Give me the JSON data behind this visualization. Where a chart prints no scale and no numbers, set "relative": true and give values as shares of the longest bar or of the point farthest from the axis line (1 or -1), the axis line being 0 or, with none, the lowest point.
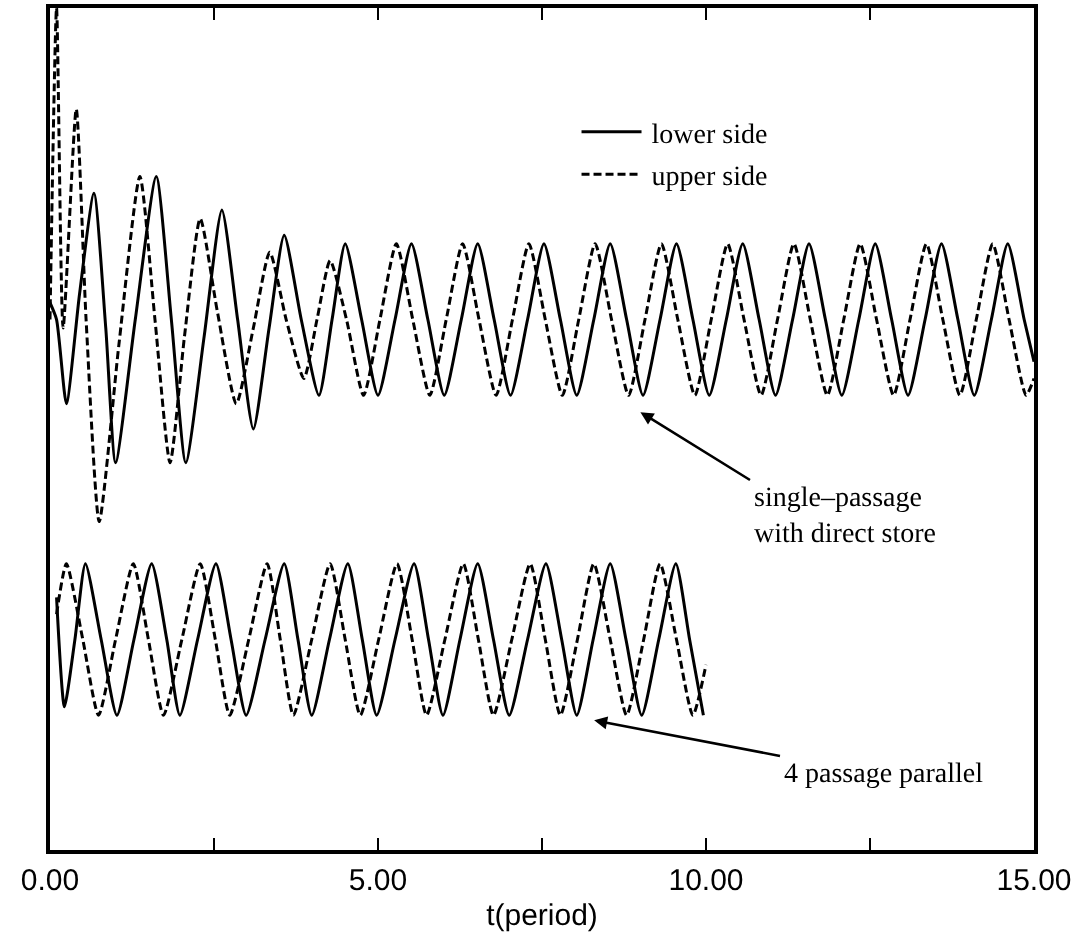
{
  "chart_data": {
    "type": "line",
    "relative": true,
    "xlabel": "t(period)",
    "xlim": [
      0,
      15
    ],
    "xticks": [
      {
        "value": 0,
        "label": "0.00"
      },
      {
        "value": 2.5,
        "label": null
      },
      {
        "value": 5,
        "label": "5.00"
      },
      {
        "value": 7.5,
        "label": null
      },
      {
        "value": 10,
        "label": "10.00"
      },
      {
        "value": 12.5,
        "label": null
      },
      {
        "value": 15,
        "label": "15.00"
      }
    ],
    "tick_labels": "x",
    "grid": false,
    "legend": "top right",
    "marker": "none",
    "series": [
      {
        "name": "lower side",
        "color": "#000000",
        "line_style": "solid",
        "x": [
          0,
          0.1,
          0.25,
          0.45,
          0.67,
          0.85,
          1.0,
          1.3,
          1.62,
          1.85,
          2.07,
          2.35,
          2.62,
          2.86,
          3.1,
          3.34,
          3.57,
          3.83,
          4.1,
          4.3,
          4.5,
          4.75,
          5.0,
          5.26,
          5.51,
          5.76,
          6.01,
          6.27,
          6.52,
          6.77,
          7.02,
          7.28,
          7.53,
          7.78,
          8.03,
          8.29,
          8.54,
          8.79,
          9.04,
          9.3,
          9.55,
          9.8,
          10.05,
          10.31,
          10.56,
          10.81,
          11.06,
          11.32,
          11.57,
          11.82,
          12.07,
          12.33,
          12.58,
          12.83,
          13.08,
          13.34,
          13.59,
          13.84,
          14.09,
          14.35,
          14.6,
          14.85,
          15
        ],
        "values": [
          0.65,
          0.63,
          0.53,
          0.66,
          0.78,
          0.62,
          0.46,
          0.63,
          0.8,
          0.63,
          0.46,
          0.61,
          0.76,
          0.63,
          0.5,
          0.62,
          0.73,
          0.63,
          0.54,
          0.63,
          0.72,
          0.63,
          0.54,
          0.63,
          0.72,
          0.63,
          0.54,
          0.63,
          0.72,
          0.63,
          0.54,
          0.63,
          0.72,
          0.63,
          0.54,
          0.63,
          0.72,
          0.63,
          0.54,
          0.63,
          0.72,
          0.63,
          0.54,
          0.63,
          0.72,
          0.63,
          0.54,
          0.63,
          0.72,
          0.63,
          0.54,
          0.63,
          0.72,
          0.63,
          0.54,
          0.63,
          0.72,
          0.63,
          0.54,
          0.63,
          0.72,
          0.63,
          0.58
        ]
      },
      {
        "name": "upper side",
        "color": "#000000",
        "line_style": "dashed",
        "x": [
          0,
          0.1,
          0.2,
          0.4,
          0.55,
          0.75,
          1.05,
          1.37,
          1.6,
          1.83,
          2.05,
          2.29,
          2.55,
          2.84,
          3.1,
          3.35,
          3.6,
          3.87,
          4.07,
          4.27,
          4.52,
          4.78,
          5.03,
          5.28,
          5.53,
          5.79,
          6.04,
          6.29,
          6.54,
          6.8,
          7.05,
          7.3,
          7.55,
          7.81,
          8.06,
          8.31,
          8.56,
          8.82,
          9.07,
          9.32,
          9.57,
          9.83,
          10.08,
          10.33,
          10.58,
          10.84,
          11.09,
          11.34,
          11.59,
          11.85,
          12.1,
          12.35,
          12.6,
          12.86,
          13.11,
          13.36,
          13.61,
          13.87,
          14.12,
          14.37,
          14.62,
          14.88,
          15
        ],
        "values": [
          0.63,
          1.0,
          0.62,
          0.88,
          0.63,
          0.39,
          0.6,
          0.8,
          0.63,
          0.46,
          0.61,
          0.75,
          0.64,
          0.53,
          0.62,
          0.71,
          0.63,
          0.56,
          0.63,
          0.7,
          0.63,
          0.54,
          0.63,
          0.72,
          0.63,
          0.54,
          0.63,
          0.72,
          0.63,
          0.54,
          0.63,
          0.72,
          0.63,
          0.54,
          0.63,
          0.72,
          0.63,
          0.54,
          0.63,
          0.72,
          0.63,
          0.54,
          0.63,
          0.72,
          0.63,
          0.54,
          0.63,
          0.72,
          0.63,
          0.54,
          0.63,
          0.72,
          0.63,
          0.54,
          0.63,
          0.72,
          0.63,
          0.54,
          0.63,
          0.72,
          0.63,
          0.54,
          0.56
        ]
      },
      {
        "color": "#000000",
        "line_style": "solid",
        "x": [
          0.1,
          0.22,
          0.38,
          0.54,
          0.78,
          1.02,
          1.28,
          1.55,
          1.78,
          1.98,
          2.25,
          2.53,
          2.76,
          2.99,
          3.28,
          3.57,
          3.78,
          3.99,
          4.26,
          4.54,
          4.76,
          4.98,
          5.26,
          5.55,
          5.77,
          5.99,
          6.25,
          6.52,
          6.76,
          7.0,
          7.28,
          7.56,
          7.8,
          8.03,
          8.28,
          8.54,
          8.78,
          9.02,
          9.28,
          9.54,
          9.75,
          9.96
        ],
        "values": [
          0.3,
          0.17,
          0.25,
          0.34,
          0.25,
          0.16,
          0.25,
          0.34,
          0.25,
          0.16,
          0.25,
          0.34,
          0.25,
          0.16,
          0.25,
          0.34,
          0.25,
          0.16,
          0.25,
          0.34,
          0.25,
          0.16,
          0.25,
          0.34,
          0.25,
          0.16,
          0.25,
          0.34,
          0.25,
          0.16,
          0.25,
          0.34,
          0.25,
          0.16,
          0.25,
          0.34,
          0.25,
          0.16,
          0.25,
          0.34,
          0.25,
          0.16
        ]
      },
      {
        "color": "#000000",
        "line_style": "dashed",
        "x": [
          0.1,
          0.25,
          0.5,
          0.74,
          1.0,
          1.27,
          1.5,
          1.73,
          2.01,
          2.29,
          2.52,
          2.74,
          3.03,
          3.31,
          3.51,
          3.71,
          3.99,
          4.27,
          4.5,
          4.73,
          5.01,
          5.29,
          5.52,
          5.74,
          6.02,
          6.3,
          6.53,
          6.76,
          7.04,
          7.32,
          7.55,
          7.78,
          8.04,
          8.29,
          8.54,
          8.79,
          9.05,
          9.3,
          9.55,
          9.8,
          10.0
        ],
        "values": [
          0.28,
          0.34,
          0.25,
          0.16,
          0.25,
          0.34,
          0.25,
          0.16,
          0.25,
          0.34,
          0.25,
          0.16,
          0.25,
          0.34,
          0.25,
          0.16,
          0.25,
          0.34,
          0.25,
          0.16,
          0.25,
          0.34,
          0.25,
          0.16,
          0.25,
          0.34,
          0.25,
          0.16,
          0.25,
          0.34,
          0.25,
          0.16,
          0.25,
          0.34,
          0.25,
          0.16,
          0.25,
          0.34,
          0.25,
          0.16,
          0.22
        ]
      }
    ],
    "annotations": [
      "single–passage\nwith direct store",
      "4 passage parallel"
    ]
  }
}
